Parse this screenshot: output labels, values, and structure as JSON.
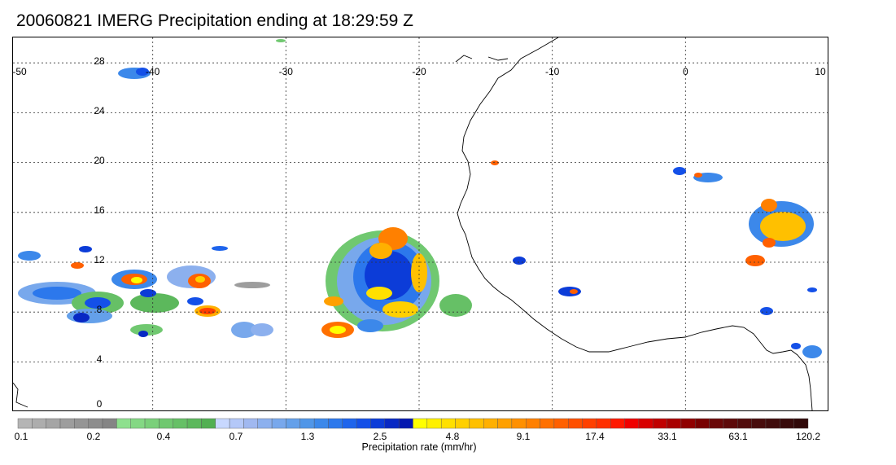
{
  "title": "20060821 IMERG Precipitation ending at 18:29:59 Z",
  "map": {
    "lon_range": [
      -50,
      10
    ],
    "lat_range": [
      -0.5,
      28.5
    ],
    "lon_ticks": [
      "-50",
      "-40",
      "-30",
      "-20",
      "-10",
      "0",
      "10"
    ],
    "lat_ticks": [
      "28",
      "24",
      "20",
      "16",
      "12",
      "8",
      "4",
      "0"
    ]
  },
  "colorbar": {
    "title": "Precipitation rate (mm/hr)",
    "labels": [
      "0.1",
      "0.2",
      "0.4",
      "0.7",
      "1.3",
      "2.5",
      "4.8",
      "9.1",
      "17.4",
      "33.1",
      "63.1",
      "120.2"
    ],
    "colors": [
      "#b5b5b5",
      "#adadad",
      "#a5a5a5",
      "#9d9d9d",
      "#959595",
      "#8d8d8d",
      "#858585",
      "#8ee08e",
      "#84d884",
      "#7ad07a",
      "#70c870",
      "#66c066",
      "#5cb85c",
      "#52b052",
      "#c8d8ff",
      "#b4c8f8",
      "#a0b8f0",
      "#8cb0ee",
      "#78a8ec",
      "#64a0ea",
      "#5096e8",
      "#3c88ea",
      "#2c78ec",
      "#1e64ec",
      "#1450e8",
      "#0c3cd8",
      "#0828c4",
      "#0418b0",
      "#ffff00",
      "#fff000",
      "#ffe000",
      "#ffd000",
      "#ffc000",
      "#ffb000",
      "#ffa000",
      "#ff9000",
      "#ff8000",
      "#ff7000",
      "#ff6000",
      "#ff5000",
      "#ff4000",
      "#ff3000",
      "#ff1800",
      "#f00000",
      "#d80000",
      "#c00000",
      "#a80000",
      "#900000",
      "#780000",
      "#6a0808",
      "#5e0a0a",
      "#520c0c",
      "#480c0c",
      "#400c0c",
      "#380a0a",
      "#300808"
    ]
  }
}
